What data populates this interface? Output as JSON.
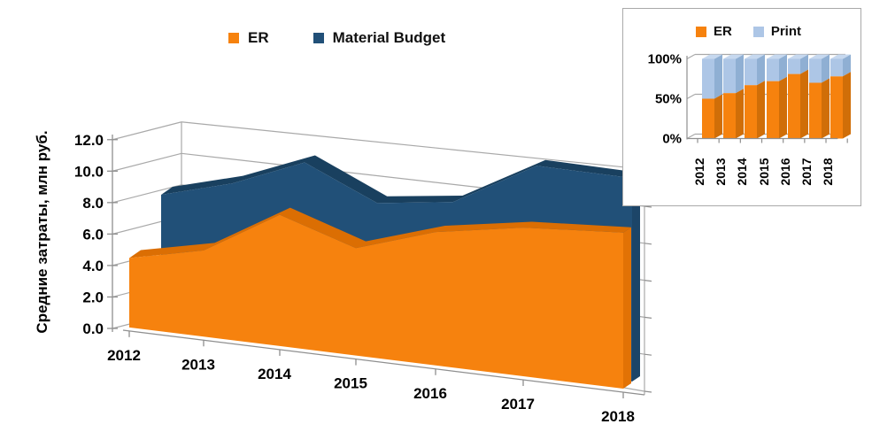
{
  "chart_data": [
    {
      "type": "area",
      "variant": "3d",
      "ylabel": "Средние затраты, млн руб.",
      "categories": [
        "2012",
        "2013",
        "2014",
        "2015",
        "2016",
        "2017",
        "2018"
      ],
      "series": [
        {
          "name": "ER",
          "color": "#F6820E",
          "color_dark": "#DB6E03",
          "color_side": "#E27205",
          "values": [
            4.4,
            5.0,
            7.0,
            5.3,
            6.1,
            6.3,
            6.1
          ]
        },
        {
          "name": "Material Budget",
          "color": "#215078",
          "color_dark": "#19405F",
          "color_side": "#1C4568",
          "values": [
            8.9,
            9.7,
            11.0,
            8.4,
            8.5,
            10.4,
            9.7
          ]
        }
      ],
      "ylim": [
        0,
        12
      ],
      "ytick_step": 2,
      "y_tick_labels": [
        "0.0",
        "2.0",
        "4.0",
        "6.0",
        "8.0",
        "10.0",
        "12.0"
      ],
      "grid": true,
      "legend_position": "top"
    },
    {
      "type": "bar",
      "variant": "3d-stacked-100",
      "categories": [
        "2012",
        "2013",
        "2014",
        "2015",
        "2016",
        "2017",
        "2018"
      ],
      "series": [
        {
          "name": "ER",
          "color": "#F6820E",
          "color_dark": "#D06E08",
          "values": [
            50,
            57,
            67,
            72,
            81,
            70,
            78
          ]
        },
        {
          "name": "Print",
          "color": "#ADC6E6",
          "color_dark": "#8FAFD3",
          "color_light": "#C6D8EF",
          "values": [
            50,
            43,
            33,
            28,
            19,
            30,
            22
          ]
        }
      ],
      "ylim": [
        0,
        100
      ],
      "y_tick_labels": [
        "0%",
        "50%",
        "100%"
      ],
      "grid": true,
      "legend_position": "top"
    }
  ],
  "style_colors": {
    "gridline": "#a9a9a9",
    "axis": "#8f8f8f",
    "text": "#000000",
    "inset_border": "#a9a9a9"
  }
}
